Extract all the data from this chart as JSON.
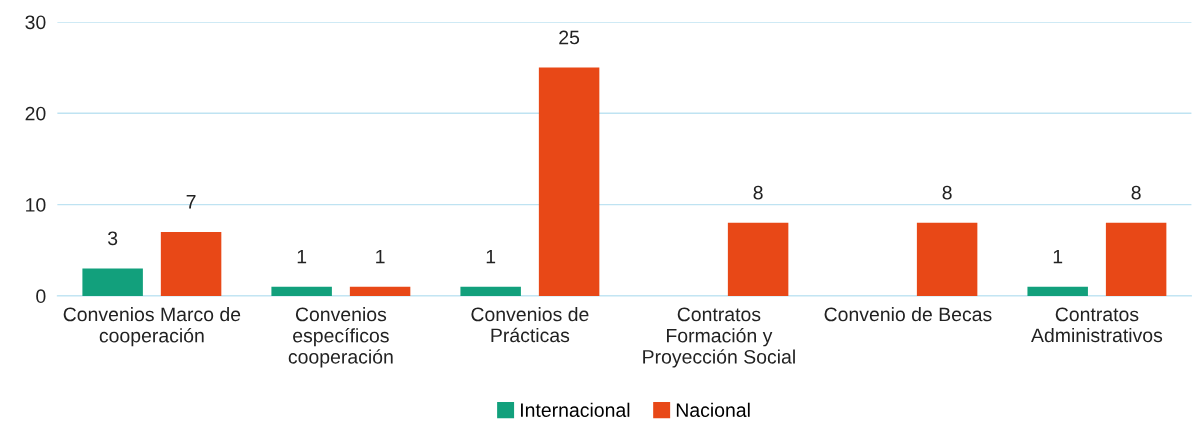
{
  "chart_data": {
    "type": "bar",
    "categories": [
      "Convenios Marco de cooperación",
      "Convenios específicos cooperación",
      "Convenios de Prácticas",
      "Contratos Formación y Proyección Social",
      "Convenio de Becas",
      "Contratos Administrativos"
    ],
    "series": [
      {
        "name": "Internacional",
        "color": "#12a07c",
        "values": [
          3,
          1,
          1,
          null,
          null,
          1
        ]
      },
      {
        "name": "Nacional",
        "color": "#e84817",
        "values": [
          7,
          1,
          25,
          8,
          8,
          8
        ]
      }
    ],
    "ylim": [
      0,
      30
    ],
    "yticks": [
      0,
      10,
      20,
      30
    ],
    "grid": "y",
    "legend": "bottom",
    "data_labels": true
  }
}
